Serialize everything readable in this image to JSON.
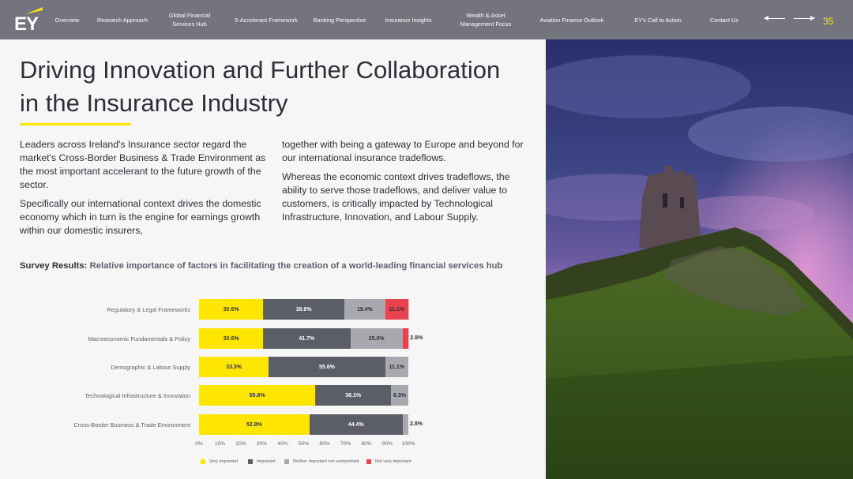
{
  "nav": {
    "logo_text": "EY",
    "items": [
      "Overview",
      "Research Approach",
      "Global Financial\nServices Hub",
      "5-Accelerant Framework",
      "Banking Perspective",
      "Insurance Insights",
      "Wealth & Asset\nManagement Focus",
      "Aviation Finance Outlook",
      "EY's Call to Action",
      "Contact Us"
    ],
    "page_number": "35"
  },
  "colors": {
    "nav_bg": "#74747f",
    "accent_yellow": "#ffe600",
    "very_important": "#ffe600",
    "important": "#5b5e66",
    "neutral": "#a7a9ae",
    "not_very_important": "#e8434e"
  },
  "content": {
    "title": "Driving Innovation and Further Collaboration in the Insurance Industry",
    "left_paragraphs": [
      "Leaders across Ireland's Insurance sector regard the market's Cross-Border Business & Trade Environment as the most important accelerant to the future growth of the sector.",
      "Specifically our international context drives the domestic economy which in turn is the engine for earnings growth within our domestic insurers,"
    ],
    "right_paragraphs": [
      "together with being a gateway to Europe and beyond for our international insurance tradeflows.",
      "Whereas the economic context drives tradeflows, the ability to serve those tradeflows, and deliver value to customers, is critically impacted by Technological Infrastructure, Innovation, and Labour Supply."
    ],
    "survey_label": "Survey Results:",
    "survey_text": "Relative importance of factors in facilitating the creation of a world-leading financial services hub"
  },
  "chart_data": {
    "type": "bar",
    "orientation": "horizontal",
    "stacked": true,
    "categories": [
      "Regulatory & Legal Frameworks",
      "Macroeconomic Fundamentals & Policy",
      "Demographic & Labour Supply",
      "Technological Infrastructure & Innovation",
      "Cross-Border Business & Trade Environment"
    ],
    "series": [
      {
        "name": "Very important",
        "values": [
          30.6,
          30.6,
          33.3,
          55.6,
          52.8
        ],
        "labels": [
          "30.6%",
          "30.6%",
          "33.3%",
          "55.6%",
          "52.8%"
        ]
      },
      {
        "name": "Important",
        "values": [
          38.9,
          41.7,
          55.6,
          36.1,
          44.4
        ],
        "labels": [
          "38.9%",
          "41.7%",
          "55.6%",
          "36.1%",
          "44.4%"
        ]
      },
      {
        "name": "Neither important nor unimportant",
        "values": [
          19.4,
          25.0,
          11.1,
          8.3,
          2.8
        ],
        "labels": [
          "19.4%",
          "25.0%",
          "11.1%",
          "8.3%",
          "2.8%"
        ]
      },
      {
        "name": "Not very important",
        "values": [
          11.1,
          2.8,
          0,
          0,
          0
        ],
        "labels": [
          "11.1%",
          "2.8%",
          "",
          "",
          ""
        ]
      }
    ],
    "xlim": [
      0,
      100
    ],
    "x_ticks": [
      "0%",
      "10%",
      "20%",
      "30%",
      "40%",
      "50%",
      "60%",
      "70%",
      "80%",
      "90%",
      "100%"
    ],
    "legend_position": "bottom",
    "grid": false
  }
}
